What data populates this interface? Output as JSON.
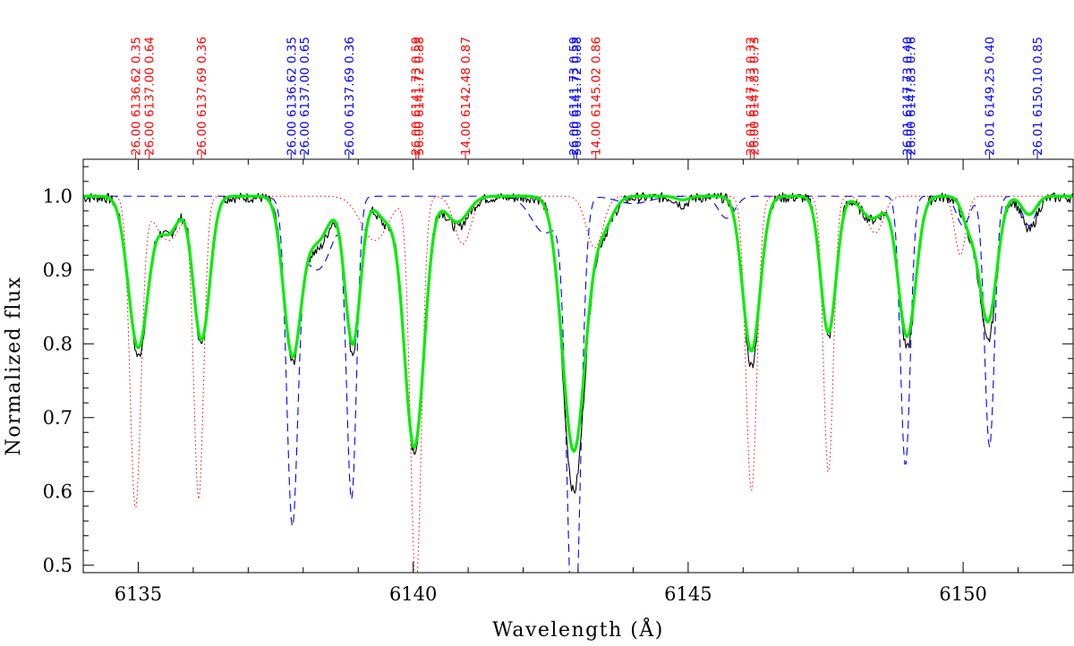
{
  "chart_data": {
    "type": "line",
    "title": "",
    "xlabel": "Wavelength  (Å)",
    "ylabel": "Normalized flux",
    "xlim": [
      6134.0,
      6152.0
    ],
    "ylim": [
      0.49,
      1.05
    ],
    "xticks": [
      6135,
      6140,
      6145,
      6150
    ],
    "xtick_labels": [
      "6135",
      "6140",
      "6145",
      "6150"
    ],
    "yticks": [
      0.5,
      0.6,
      0.7,
      0.8,
      0.9,
      1.0
    ],
    "ytick_labels": [
      "0.5",
      "0.6",
      "0.7",
      "0.8",
      "0.9",
      "1.0"
    ],
    "line_labels": [
      {
        "wavelength": 6134.95,
        "text": "26.00 6136.62 0.35",
        "color": "#ff0000"
      },
      {
        "wavelength": 6135.2,
        "text": "26.00 6137.00 0.64",
        "color": "#ff0000"
      },
      {
        "wavelength": 6136.15,
        "text": "26.00 6137.69 0.36",
        "color": "#ff0000"
      },
      {
        "wavelength": 6137.78,
        "text": "26.00 6136.62 0.35",
        "color": "#0000ff"
      },
      {
        "wavelength": 6138.02,
        "text": "26.00 6137.00 0.65",
        "color": "#0000ff"
      },
      {
        "wavelength": 6138.83,
        "text": "26.00 6137.69 0.36",
        "color": "#0000ff"
      },
      {
        "wavelength": 6140.05,
        "text": "26.00 6141.73 0.59",
        "color": "#ff0000"
      },
      {
        "wavelength": 6140.1,
        "text": "56.00 6141.72 0.88",
        "color": "#ff0000"
      },
      {
        "wavelength": 6140.95,
        "text": "14.00 6142.48 0.87",
        "color": "#ff0000"
      },
      {
        "wavelength": 6142.92,
        "text": "26.00 6141.73 0.59",
        "color": "#0000ff"
      },
      {
        "wavelength": 6142.97,
        "text": "56.00 6141.72 0.88",
        "color": "#0000ff"
      },
      {
        "wavelength": 6143.32,
        "text": "14.00 6145.02 0.86",
        "color": "#ff0000"
      },
      {
        "wavelength": 6146.13,
        "text": "26.01 6147.73 0.32",
        "color": "#ff0000"
      },
      {
        "wavelength": 6146.2,
        "text": "26.00 6147.83 0.73",
        "color": "#ff0000"
      },
      {
        "wavelength": 6148.98,
        "text": "26.01 6147.73 0.40",
        "color": "#0000ff"
      },
      {
        "wavelength": 6149.05,
        "text": "26.00 6147.83 0.76",
        "color": "#0000ff"
      },
      {
        "wavelength": 6150.48,
        "text": "26.01 6149.25 0.40",
        "color": "#0000ff"
      },
      {
        "wavelength": 6151.35,
        "text": "26.01 6150.10 0.85",
        "color": "#0000ff"
      }
    ],
    "series": [
      {
        "style": "solid-thin",
        "color": "#000000",
        "noise": true,
        "baseline": 0.998,
        "features": [
          [
            6135.0,
            0.215,
            0.17
          ],
          [
            6135.55,
            0.05,
            0.18
          ],
          [
            6136.15,
            0.2,
            0.14
          ],
          [
            6137.8,
            0.215,
            0.15
          ],
          [
            6138.25,
            0.07,
            0.22
          ],
          [
            6138.9,
            0.21,
            0.13
          ],
          [
            6139.5,
            0.035,
            0.18
          ],
          [
            6140.02,
            0.345,
            0.17
          ],
          [
            6140.8,
            0.04,
            0.2
          ],
          [
            6142.92,
            0.398,
            0.2
          ],
          [
            6143.45,
            0.045,
            0.18
          ],
          [
            6144.9,
            0.01,
            0.1
          ],
          [
            6146.15,
            0.228,
            0.15
          ],
          [
            6147.55,
            0.19,
            0.13
          ],
          [
            6148.35,
            0.03,
            0.2
          ],
          [
            6148.98,
            0.205,
            0.15
          ],
          [
            6150.1,
            0.04,
            0.12
          ],
          [
            6150.45,
            0.195,
            0.15
          ],
          [
            6151.2,
            0.045,
            0.13
          ]
        ]
      },
      {
        "style": "solid-thick",
        "color": "#00ee00",
        "noise": false,
        "baseline": 1.0,
        "features": [
          [
            6135.0,
            0.205,
            0.18
          ],
          [
            6135.55,
            0.05,
            0.18
          ],
          [
            6136.15,
            0.195,
            0.15
          ],
          [
            6137.8,
            0.21,
            0.16
          ],
          [
            6138.25,
            0.06,
            0.22
          ],
          [
            6138.9,
            0.2,
            0.14
          ],
          [
            6139.5,
            0.03,
            0.18
          ],
          [
            6140.02,
            0.34,
            0.18
          ],
          [
            6140.8,
            0.035,
            0.2
          ],
          [
            6142.92,
            0.345,
            0.21
          ],
          [
            6143.45,
            0.04,
            0.18
          ],
          [
            6144.9,
            0.005,
            0.12
          ],
          [
            6146.15,
            0.21,
            0.16
          ],
          [
            6147.55,
            0.185,
            0.14
          ],
          [
            6148.35,
            0.03,
            0.2
          ],
          [
            6148.98,
            0.19,
            0.16
          ],
          [
            6150.1,
            0.035,
            0.12
          ],
          [
            6150.45,
            0.17,
            0.16
          ],
          [
            6151.2,
            0.025,
            0.13
          ]
        ]
      },
      {
        "style": "dotted",
        "color": "#ff0000",
        "noise": false,
        "baseline": 1.0,
        "features": [
          [
            6134.95,
            0.42,
            0.1
          ],
          [
            6135.55,
            0.06,
            0.25
          ],
          [
            6136.1,
            0.405,
            0.09
          ],
          [
            6139.3,
            0.06,
            0.25
          ],
          [
            6140.05,
            0.53,
            0.1
          ],
          [
            6140.9,
            0.065,
            0.15
          ],
          [
            6143.3,
            0.07,
            0.15
          ],
          [
            6146.15,
            0.4,
            0.1
          ],
          [
            6147.55,
            0.375,
            0.09
          ],
          [
            6148.4,
            0.05,
            0.15
          ],
          [
            6149.95,
            0.08,
            0.1
          ]
        ]
      },
      {
        "style": "dashed",
        "color": "#0000ff",
        "noise": false,
        "baseline": 1.0,
        "features": [
          [
            6137.8,
            0.415,
            0.1
          ],
          [
            6138.25,
            0.1,
            0.3
          ],
          [
            6138.88,
            0.4,
            0.09
          ],
          [
            6142.92,
            0.62,
            0.12
          ],
          [
            6142.4,
            0.05,
            0.25
          ],
          [
            6144.0,
            0.01,
            0.3
          ],
          [
            6145.7,
            0.03,
            0.15
          ],
          [
            6148.95,
            0.365,
            0.09
          ],
          [
            6150.48,
            0.34,
            0.09
          ],
          [
            6150.0,
            0.04,
            0.12
          ],
          [
            6151.2,
            0.04,
            0.12
          ]
        ]
      }
    ],
    "grid": false,
    "legend": "none"
  }
}
